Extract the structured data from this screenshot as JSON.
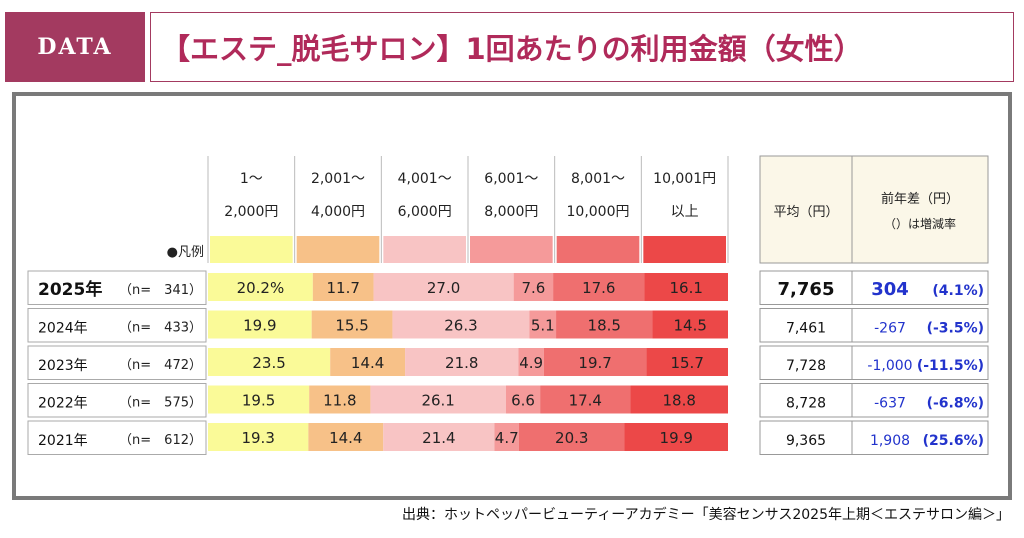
{
  "header": {
    "badge": "DATA",
    "title": "【エステ_脱毛サロン】1回あたりの利用金額（女性）"
  },
  "legend_label": "●凡例",
  "summary_headers": {
    "average": "平均（円）",
    "diff_line1": "前年差（円）",
    "diff_line2": "（）は増減率"
  },
  "source": "出典：ホットペッパービューティーアカデミー「美容センサス2025年上期＜エステサロン編＞」",
  "colors": [
    "#fafa98",
    "#f7c188",
    "#f8c4c4",
    "#f59a9a",
    "#ef6f6f",
    "#ec4848"
  ],
  "accent": "#a33a60",
  "chart_data": {
    "type": "bar",
    "orientation": "horizontal",
    "stacked": true,
    "percent": true,
    "categories": [
      [
        "1～",
        "2,000円"
      ],
      [
        "2,001～",
        "4,000円"
      ],
      [
        "4,001～",
        "6,000円"
      ],
      [
        "6,001～",
        "8,000円"
      ],
      [
        "8,001～",
        "10,000円"
      ],
      [
        "10,001円",
        "以上"
      ]
    ],
    "rows": [
      {
        "year": "2025年",
        "n": "（n=　341）",
        "values": [
          20.2,
          11.7,
          27.0,
          7.6,
          17.6,
          16.1
        ],
        "labels": [
          "20.2%",
          "11.7",
          "27.0",
          "7.6",
          "17.6",
          "16.1"
        ],
        "average": "7,765",
        "diff": "304",
        "rate": "(4.1%)"
      },
      {
        "year": "2024年",
        "n": "（n=　433）",
        "values": [
          19.9,
          15.5,
          26.3,
          5.1,
          18.5,
          14.5
        ],
        "labels": [
          "19.9",
          "15.5",
          "26.3",
          "5.1",
          "18.5",
          "14.5"
        ],
        "average": "7,461",
        "diff": "-267",
        "rate": "(-3.5%)"
      },
      {
        "year": "2023年",
        "n": "（n=　472）",
        "values": [
          23.5,
          14.4,
          21.8,
          4.9,
          19.7,
          15.7
        ],
        "labels": [
          "23.5",
          "14.4",
          "21.8",
          "4.9",
          "19.7",
          "15.7"
        ],
        "average": "7,728",
        "diff": "-1,000",
        "rate": "(-11.5%)"
      },
      {
        "year": "2022年",
        "n": "（n=　575）",
        "values": [
          19.5,
          11.8,
          26.1,
          6.6,
          17.4,
          18.8
        ],
        "labels": [
          "19.5",
          "11.8",
          "26.1",
          "6.6",
          "17.4",
          "18.8"
        ],
        "average": "8,728",
        "diff": "-637",
        "rate": "(-6.8%)"
      },
      {
        "year": "2021年",
        "n": "（n=　612）",
        "values": [
          19.3,
          14.4,
          21.4,
          4.7,
          20.3,
          19.9
        ],
        "labels": [
          "19.3",
          "14.4",
          "21.4",
          "4.7",
          "20.3",
          "19.9"
        ],
        "average": "9,365",
        "diff": "1,908",
        "rate": "(25.6%)"
      }
    ]
  }
}
